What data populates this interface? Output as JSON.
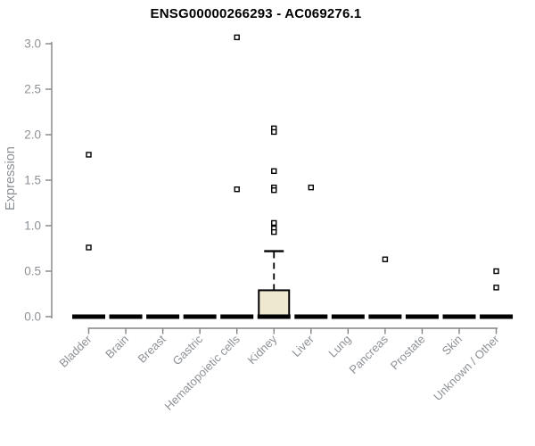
{
  "chart_data": {
    "type": "boxplot",
    "title": "ENSG00000266293 - AC069276.1",
    "xlabel": "",
    "ylabel": "Expression",
    "ylim": [
      0.0,
      3.0
    ],
    "yticks": [
      0.0,
      0.5,
      1.0,
      1.5,
      2.0,
      2.5,
      3.0
    ],
    "grid": false,
    "legend": "none",
    "categories": [
      "Bladder",
      "Brain",
      "Breast",
      "Gastric",
      "Hematopoietic cells",
      "Kidney",
      "Liver",
      "Lung",
      "Pancreas",
      "Prostate",
      "Skin",
      "Unknown / Other"
    ],
    "boxes": [
      {
        "category": "Bladder",
        "q1": 0.0,
        "median": 0.0,
        "q3": 0.0,
        "whisker_low": 0.0,
        "whisker_high": 0.0,
        "outliers": [
          1.78,
          0.76
        ]
      },
      {
        "category": "Brain",
        "q1": 0.0,
        "median": 0.0,
        "q3": 0.0,
        "whisker_low": 0.0,
        "whisker_high": 0.0,
        "outliers": []
      },
      {
        "category": "Breast",
        "q1": 0.0,
        "median": 0.0,
        "q3": 0.0,
        "whisker_low": 0.0,
        "whisker_high": 0.0,
        "outliers": []
      },
      {
        "category": "Gastric",
        "q1": 0.0,
        "median": 0.0,
        "q3": 0.0,
        "whisker_low": 0.0,
        "whisker_high": 0.0,
        "outliers": []
      },
      {
        "category": "Hematopoietic cells",
        "q1": 0.0,
        "median": 0.0,
        "q3": 0.0,
        "whisker_low": 0.0,
        "whisker_high": 0.0,
        "outliers": [
          3.07,
          1.4
        ]
      },
      {
        "category": "Kidney",
        "q1": 0.0,
        "median": 0.0,
        "q3": 0.29,
        "whisker_low": 0.0,
        "whisker_high": 0.72,
        "outliers": [
          2.07,
          2.03,
          1.6,
          1.42,
          1.39,
          1.03,
          0.97,
          0.93
        ]
      },
      {
        "category": "Liver",
        "q1": 0.0,
        "median": 0.0,
        "q3": 0.0,
        "whisker_low": 0.0,
        "whisker_high": 0.0,
        "outliers": [
          1.42
        ]
      },
      {
        "category": "Lung",
        "q1": 0.0,
        "median": 0.0,
        "q3": 0.0,
        "whisker_low": 0.0,
        "whisker_high": 0.0,
        "outliers": []
      },
      {
        "category": "Pancreas",
        "q1": 0.0,
        "median": 0.0,
        "q3": 0.0,
        "whisker_low": 0.0,
        "whisker_high": 0.0,
        "outliers": [
          0.63
        ]
      },
      {
        "category": "Prostate",
        "q1": 0.0,
        "median": 0.0,
        "q3": 0.0,
        "whisker_low": 0.0,
        "whisker_high": 0.0,
        "outliers": []
      },
      {
        "category": "Skin",
        "q1": 0.0,
        "median": 0.0,
        "q3": 0.0,
        "whisker_low": 0.0,
        "whisker_high": 0.0,
        "outliers": []
      },
      {
        "category": "Unknown / Other",
        "q1": 0.0,
        "median": 0.0,
        "q3": 0.0,
        "whisker_low": 0.0,
        "whisker_high": 0.0,
        "outliers": [
          0.5,
          0.32
        ]
      }
    ],
    "colors": {
      "box_fill": "#EDE8CE",
      "box_border": "#000000",
      "whisker": "#000000",
      "median_bar": "#000000",
      "outlier_stroke": "#000000",
      "axis_line": "#848484",
      "tick_label": "#8d9196",
      "title": "#000000",
      "background": "#ffffff"
    }
  }
}
